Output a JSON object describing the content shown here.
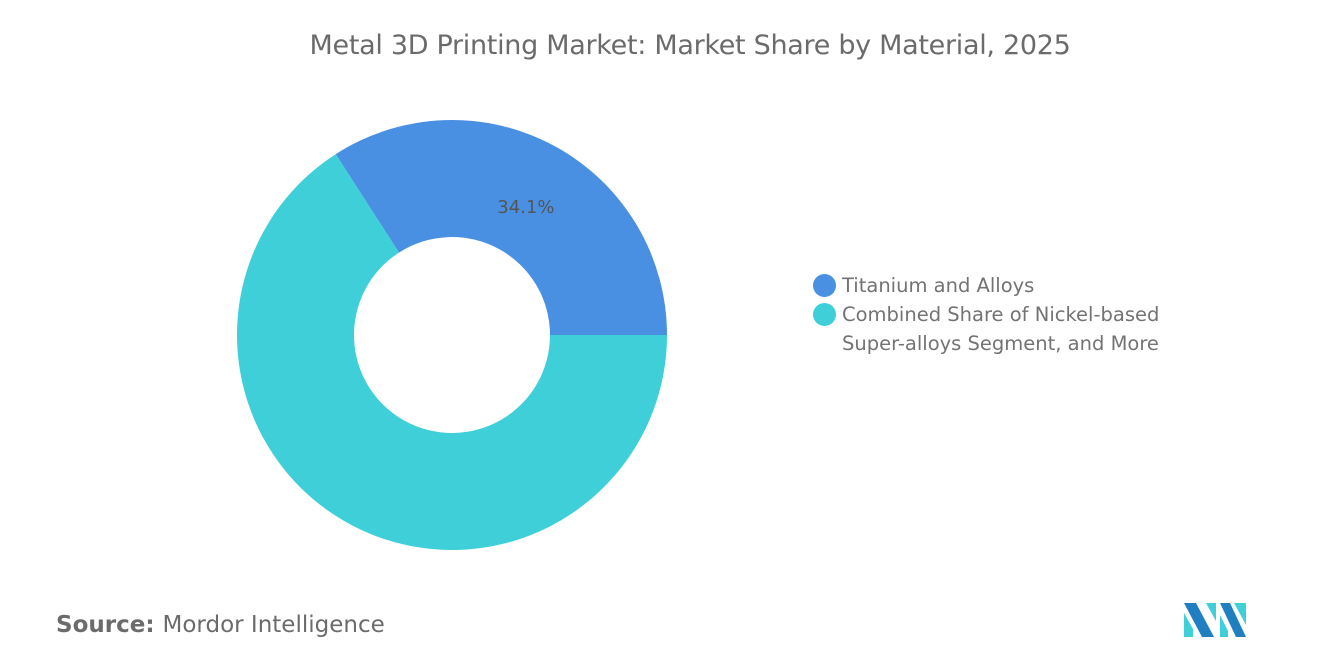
{
  "chart_data": {
    "type": "pie",
    "donut": true,
    "title": "Metal 3D Printing Market: Market Share by Material, 2025",
    "categories": [
      "Titanium and Alloys",
      "Combined Share of Nickel-based Super-alloys Segment, and More"
    ],
    "values": [
      34.1,
      65.9
    ],
    "data_labels": [
      "34.1%",
      ""
    ],
    "colors": [
      "#4a90e2",
      "#3fcfd9"
    ],
    "legend_position": "right"
  },
  "legend": {
    "items": [
      {
        "lines": [
          "Titanium and Alloys"
        ]
      },
      {
        "lines": [
          "Combined Share of Nickel-based",
          "Super-alloys Segment, and More"
        ]
      }
    ]
  },
  "source": {
    "label": "Source:",
    "value": "Mordor Intelligence"
  },
  "logo": {
    "colors": [
      "#1f7fc1",
      "#3fcfd9"
    ]
  }
}
